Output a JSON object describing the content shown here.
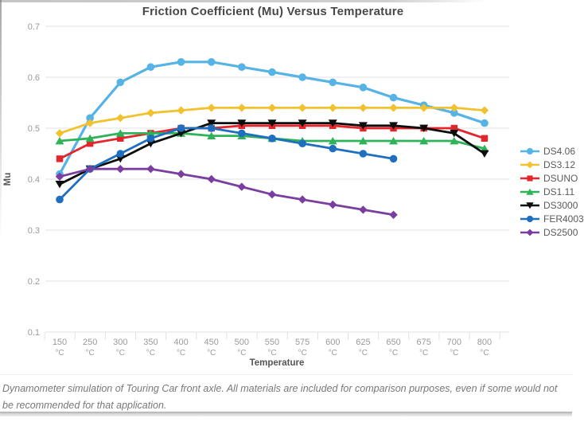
{
  "page": {
    "caption": "Dynamometer simulation of Touring Car front axle. All materials are included for comparison purposes, even if some would not be recommended for that application."
  },
  "chart_data": {
    "type": "line",
    "title": "Friction Coefficient (Mu) Versus Temperature",
    "xlabel": "Temperature",
    "ylabel": "Mu",
    "x_unit": "°C",
    "categories": [
      150,
      250,
      300,
      350,
      400,
      450,
      500,
      550,
      575,
      600,
      625,
      650,
      675,
      700,
      800
    ],
    "ylim": [
      0.1,
      0.7
    ],
    "ytick_step": 0.1,
    "grid": true,
    "legend_position": "right",
    "axis_colors": {
      "grid": "#e2e2e2",
      "tick_label": "#9a9a9a",
      "axis_title": "#555555"
    },
    "series": [
      {
        "name": "DS4.06",
        "color": "#56b3e6",
        "marker": "circle",
        "line_width": 3.2,
        "values": [
          0.41,
          0.52,
          0.59,
          0.62,
          0.63,
          0.63,
          0.62,
          0.61,
          0.6,
          0.59,
          0.58,
          0.56,
          0.545,
          0.53,
          0.51
        ]
      },
      {
        "name": "DS3.12",
        "color": "#f2c12e",
        "marker": "diamond",
        "line_width": 2.8,
        "values": [
          0.49,
          0.51,
          0.52,
          0.53,
          0.535,
          0.54,
          0.54,
          0.54,
          0.54,
          0.54,
          0.54,
          0.54,
          0.54,
          0.54,
          0.535
        ]
      },
      {
        "name": "DSUNO",
        "color": "#e4252c",
        "marker": "square",
        "line_width": 2.8,
        "values": [
          0.44,
          0.47,
          0.48,
          0.49,
          0.5,
          0.5,
          0.505,
          0.505,
          0.505,
          0.505,
          0.5,
          0.5,
          0.5,
          0.5,
          0.48
        ]
      },
      {
        "name": "DS1.11",
        "color": "#2eb358",
        "marker": "triangle-up",
        "line_width": 2.8,
        "values": [
          0.475,
          0.48,
          0.49,
          0.49,
          0.49,
          0.485,
          0.485,
          0.48,
          0.475,
          0.475,
          0.475,
          0.475,
          0.475,
          0.475,
          0.46
        ]
      },
      {
        "name": "DS3000",
        "color": "#0d0d0d",
        "marker": "triangle-down",
        "line_width": 2.8,
        "values": [
          0.39,
          0.42,
          0.44,
          0.47,
          0.49,
          0.51,
          0.51,
          0.51,
          0.51,
          0.51,
          0.505,
          0.505,
          0.5,
          0.49,
          0.45
        ]
      },
      {
        "name": "FER4003",
        "color": "#1e6fc0",
        "marker": "circle",
        "line_width": 2.8,
        "values": [
          0.36,
          0.42,
          0.45,
          0.48,
          0.5,
          0.5,
          0.49,
          0.48,
          0.47,
          0.46,
          0.45,
          0.44,
          null,
          null,
          null
        ]
      },
      {
        "name": "DS2500",
        "color": "#7a3da0",
        "marker": "diamond",
        "line_width": 2.8,
        "values": [
          0.405,
          0.42,
          0.42,
          0.42,
          0.41,
          0.4,
          0.385,
          0.37,
          0.36,
          0.35,
          0.34,
          0.33,
          null,
          null,
          null
        ]
      }
    ]
  }
}
